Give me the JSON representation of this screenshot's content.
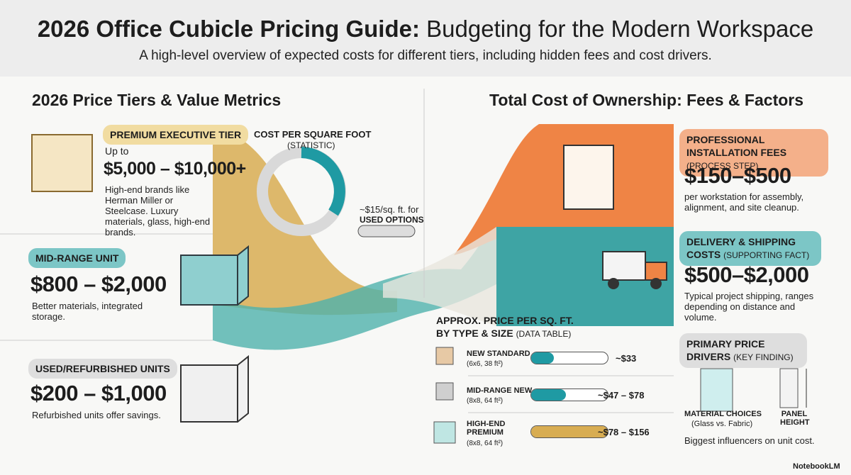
{
  "header": {
    "title_bold": "2026 Office Cubicle Pricing Guide:",
    "title_rest": "Budgeting for the Modern Workspace",
    "subtitle": "A high-level overview of expected costs for different tiers, including hidden fees and cost drivers."
  },
  "left": {
    "heading": "2026 Price Tiers & Value Metrics",
    "tiers": [
      {
        "badge": "PREMIUM EXECUTIVE TIER",
        "prefix": "Up to",
        "price": "$5,000 – $10,000+",
        "description": "High-end brands like Herman Miller or Steelcase. Luxury materials, glass, high-end brands."
      },
      {
        "badge": "MID-RANGE UNIT",
        "price": "$800 – $2,000",
        "description": "Better materials, integrated storage."
      },
      {
        "badge": "USED/REFURBISHED UNITS",
        "price": "$200 – $1,000",
        "description": "Refurbished units offer savings."
      }
    ]
  },
  "middle": {
    "statistic": {
      "title": "COST PER SQUARE FOOT",
      "tag": "(STATISTIC)",
      "note": "~$15/sq. ft. for",
      "note_bold": "USED OPTIONS"
    },
    "table": {
      "title_line1": "APPROX. PRICE PER SQ. FT.",
      "title_line2": "BY TYPE & SIZE",
      "tag": "(DATA TABLE)",
      "rows": [
        {
          "name": "NEW STANDARD",
          "size": "(6x6, 38 ft²)",
          "value": "~$33"
        },
        {
          "name": "MID-RANGE NEW",
          "size": "(8x8, 64 ft²)",
          "value": "~$47 – $78"
        },
        {
          "name": "HIGH-END PREMIUM",
          "size": "(8x8, 64 ft²)",
          "value": "~$78 – $156"
        }
      ]
    }
  },
  "right": {
    "heading": "Total Cost of Ownership: Fees & Factors",
    "installation": {
      "title": "PROFESSIONAL INSTALLATION FEES",
      "tag": "(PROCESS STEP)",
      "price": "$150–$500",
      "description": "per workstation for assembly, alignment, and site cleanup."
    },
    "delivery": {
      "title": "DELIVERY & SHIPPING COSTS",
      "tag": "(SUPPORTING FACT)",
      "price": "$500–$2,000",
      "description": "Typical project shipping, ranges depending on distance and volume."
    },
    "drivers": {
      "title": "PRIMARY PRICE DRIVERS",
      "tag": "(KEY FINDING)",
      "items": [
        {
          "label": "MATERIAL CHOICES",
          "sublabel": "(Glass vs. Fabric)"
        },
        {
          "label": "PANEL HEIGHT"
        }
      ],
      "footer": "Biggest influencers on unit cost."
    }
  },
  "watermark": "NotebookLM"
}
